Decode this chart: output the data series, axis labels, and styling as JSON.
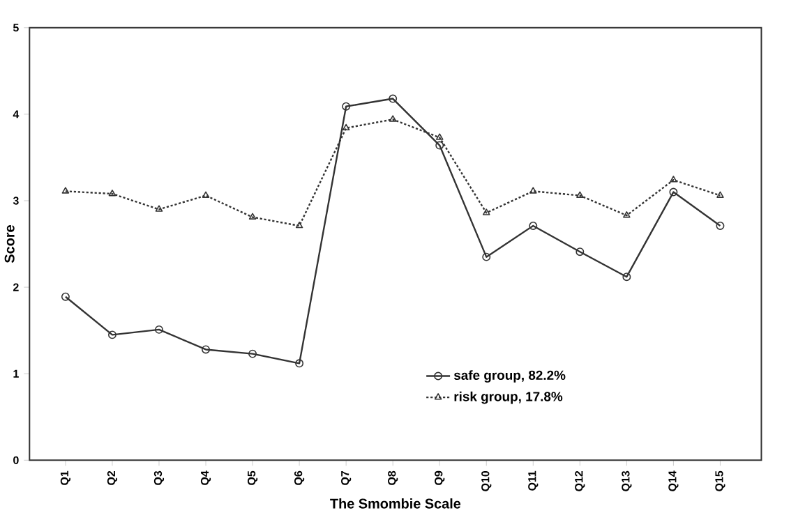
{
  "chart_data": {
    "type": "line",
    "xlabel": "The Smombie Scale",
    "ylabel": "Score",
    "categories": [
      "Q1",
      "Q2",
      "Q3",
      "Q4",
      "Q5",
      "Q6",
      "Q7",
      "Q8",
      "Q9",
      "Q10",
      "Q11",
      "Q12",
      "Q13",
      "Q14",
      "Q15"
    ],
    "series": [
      {
        "name": "safe group, 82.2%",
        "color": "#333333",
        "marker": "circle",
        "line_style": "solid",
        "values": [
          1.89,
          1.45,
          1.51,
          1.28,
          1.23,
          1.12,
          4.09,
          4.18,
          3.64,
          2.35,
          2.71,
          2.41,
          2.12,
          3.1,
          2.71
        ]
      },
      {
        "name": "risk group, 17.8%",
        "color": "#333333",
        "marker": "triangle",
        "line_style": "dotted",
        "values": [
          3.11,
          3.08,
          2.9,
          3.06,
          2.81,
          2.71,
          3.84,
          3.94,
          3.73,
          2.86,
          3.11,
          3.06,
          2.83,
          3.24,
          3.06
        ]
      }
    ],
    "ylim": [
      0,
      5
    ],
    "yticks": [
      0,
      1,
      2,
      3,
      4,
      5
    ],
    "grid": false,
    "legend": "bottom right"
  }
}
